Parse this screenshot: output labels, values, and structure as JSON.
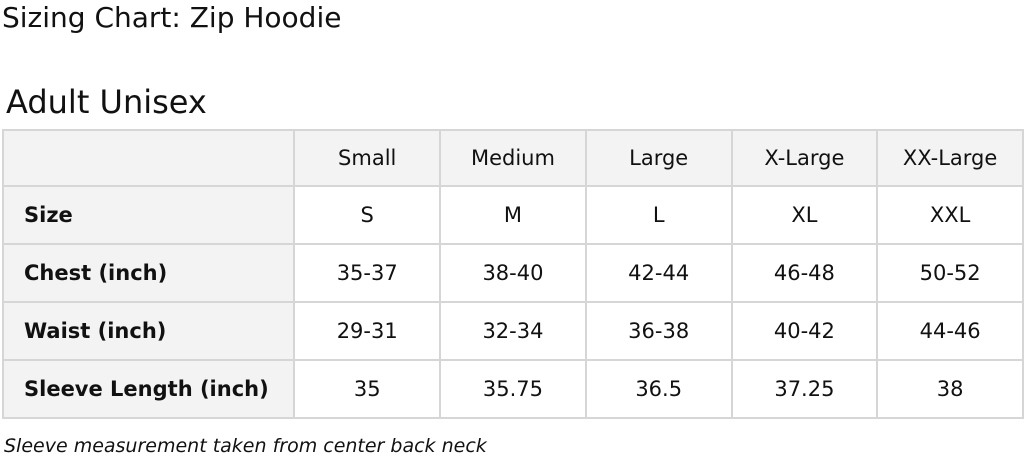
{
  "title": "Sizing Chart: Zip Hoodie",
  "subtitle": "Adult Unisex",
  "table": {
    "columns": [
      "",
      "Small",
      "Medium",
      "Large",
      "X-Large",
      "XX-Large"
    ],
    "rows": [
      {
        "label": "Size",
        "values": [
          "S",
          "M",
          "L",
          "XL",
          "XXL"
        ]
      },
      {
        "label": "Chest (inch)",
        "values": [
          "35-37",
          "38-40",
          "42-44",
          "46-48",
          "50-52"
        ]
      },
      {
        "label": "Waist (inch)",
        "values": [
          "29-31",
          "32-34",
          "36-38",
          "40-42",
          "44-46"
        ]
      },
      {
        "label": "Sleeve Length (inch)",
        "values": [
          "35",
          "35.75",
          "36.5",
          "37.25",
          "38"
        ]
      }
    ]
  },
  "note": "Sleeve measurement taken from center back neck"
}
